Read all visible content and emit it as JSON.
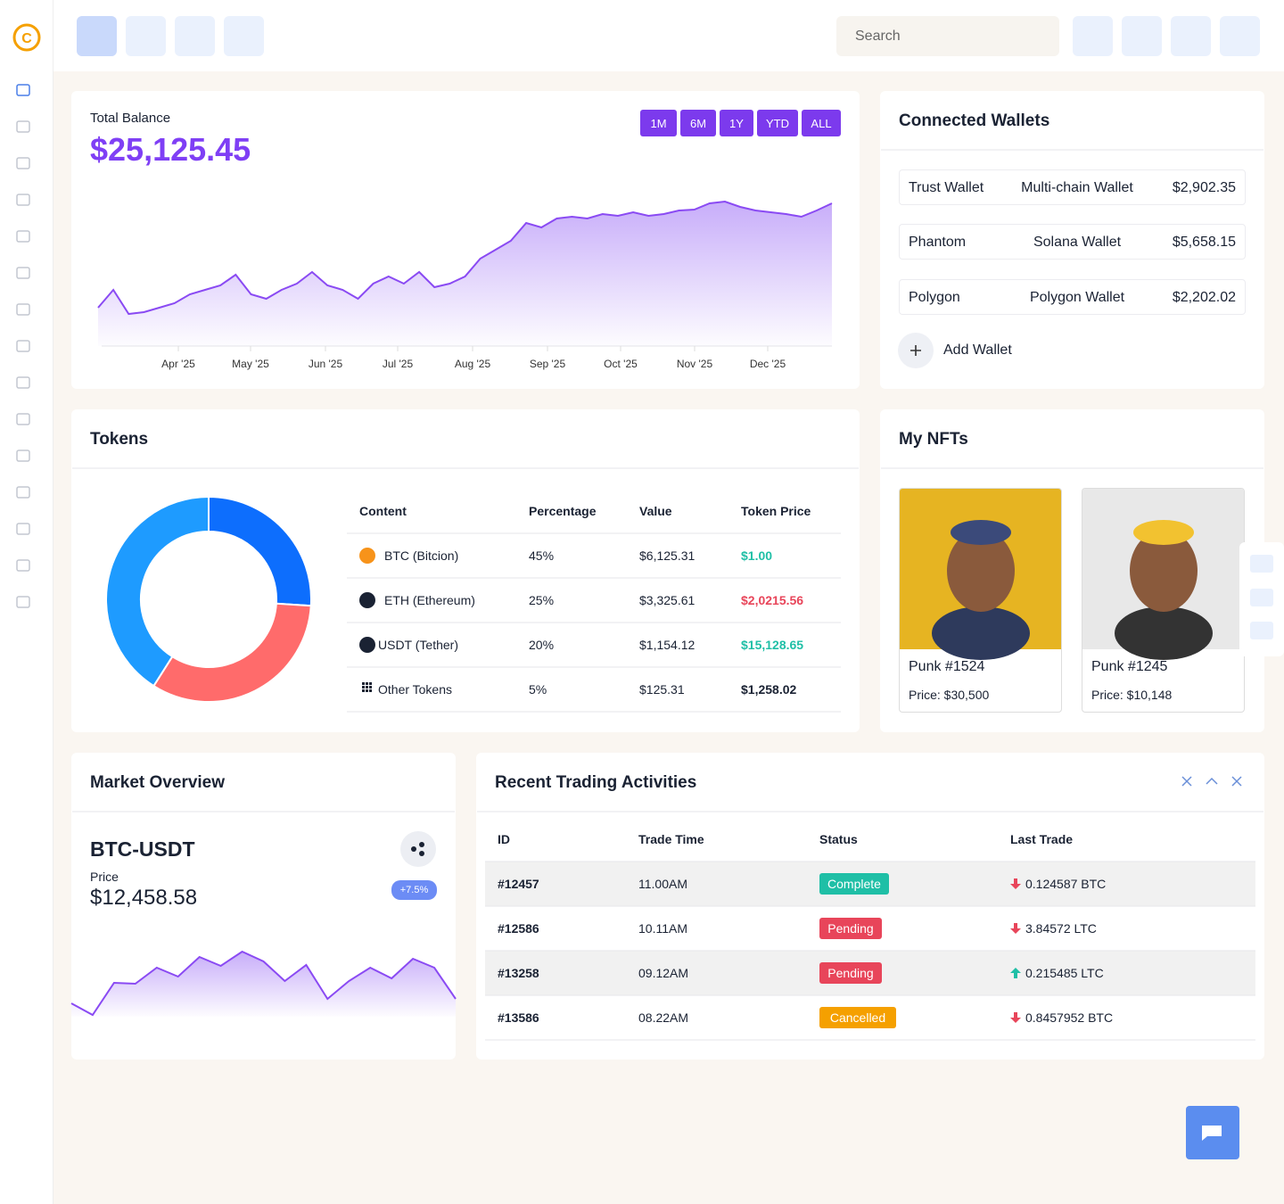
{
  "header": {
    "search_placeholder": "Search"
  },
  "balance": {
    "label": "Total Balance",
    "amount": "$25,125.45",
    "ranges": [
      "1M",
      "6M",
      "1Y",
      "YTD",
      "ALL"
    ],
    "chart": {
      "type": "area",
      "color": "#8a4af3",
      "x_labels": [
        "Apr '25",
        "May '25",
        "Jun '25",
        "Jul '25",
        "Aug '25",
        "Sep '25",
        "Oct '25",
        "Nov '25",
        "Dec '25"
      ],
      "ylim": [
        0,
        170
      ],
      "values": [
        43,
        63,
        36,
        38,
        43,
        48,
        58,
        63,
        68,
        80,
        58,
        53,
        63,
        70,
        83,
        68,
        63,
        53,
        70,
        78,
        70,
        83,
        66,
        70,
        78,
        98,
        108,
        118,
        138,
        133,
        143,
        145,
        143,
        148,
        146,
        150,
        146,
        148,
        152,
        153,
        160,
        162,
        156,
        152,
        150,
        148,
        145,
        152,
        160
      ]
    }
  },
  "wallets": {
    "title": "Connected Wallets",
    "rows": [
      [
        "Trust Wallet",
        "Multi-chain Wallet",
        "$2,902.35"
      ],
      [
        "Phantom",
        "Solana Wallet",
        "$5,658.15"
      ],
      [
        "Polygon",
        "Polygon Wallet",
        "$2,202.02"
      ]
    ],
    "add": "Add Wallet"
  },
  "tokens": {
    "title": "Tokens",
    "columns": [
      "Content",
      "Percentage",
      "Value",
      "Token Price"
    ],
    "rows": [
      {
        "name": "BTC (Bitcion)",
        "percentage": "45%",
        "value": "$6,125.31",
        "price": "$1.00",
        "price_color": "#1fbfa6"
      },
      {
        "name": "ETH (Ethereum)",
        "percentage": "25%",
        "value": "$3,325.61",
        "price": "$2,0215.56",
        "price_color": "#e8455a"
      },
      {
        "name": "USDT (Tether)",
        "percentage": "20%",
        "value": "$1,154.12",
        "price": "$15,128.65",
        "price_color": "#1fbfa6"
      },
      {
        "name": "Other Tokens",
        "percentage": "5%",
        "value": "$125.31",
        "price": "$1,258.02",
        "price_color": "#1a2233"
      }
    ],
    "donut": {
      "type": "pie",
      "values": [
        26,
        33,
        41
      ],
      "colors": [
        "#0d6efd",
        "#ff6b6b",
        "#1e9bff"
      ]
    }
  },
  "nfts": {
    "title": "My NFTs",
    "items": [
      {
        "name": "Punk #1524",
        "price": "Price: $30,500",
        "bg": "#e6b422"
      },
      {
        "name": "Punk #1245",
        "price": "Price: $10,148",
        "bg": "#e8e8e8"
      }
    ]
  },
  "market": {
    "title": "Market Overview",
    "pair": "BTC-USDT",
    "price_label": "Price",
    "price": "$12,458.58",
    "change": "+7.5%",
    "chart": {
      "type": "area",
      "color": "#8a4af3",
      "ylim": [
        0,
        90
      ],
      "values": [
        15,
        2,
        38,
        37,
        55,
        45,
        67,
        57,
        73,
        62,
        40,
        58,
        20,
        40,
        55,
        43,
        65,
        55,
        20
      ]
    }
  },
  "trades": {
    "title": "Recent Trading Activities",
    "columns": [
      "ID",
      "Trade Time",
      "Status",
      "Last Trade"
    ],
    "rows": [
      {
        "id": "#12457",
        "time": "11.00AM",
        "status": "Complete",
        "status_color": "#1fbfa6",
        "last": "0.124587 BTC",
        "trend": "down"
      },
      {
        "id": "#12586",
        "time": "10.11AM",
        "status": "Pending",
        "status_color": "#e8455a",
        "last": "3.84572 LTC",
        "trend": "down"
      },
      {
        "id": "#13258",
        "time": "09.12AM",
        "status": "Pending",
        "status_color": "#e8455a",
        "last": "0.215485 LTC",
        "trend": "up"
      },
      {
        "id": "#13586",
        "time": "08.22AM",
        "status": "Cancelled",
        "status_color": "#f5a000",
        "last": "0.8457952 BTC",
        "trend": "down"
      }
    ]
  }
}
